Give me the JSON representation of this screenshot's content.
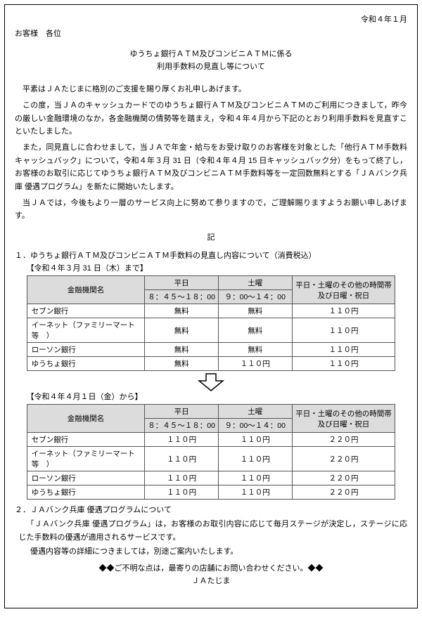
{
  "date": "令和４年１月",
  "addressee": "お客様　各位",
  "title": {
    "line1": "ゆうちょ銀行ＡＴＭ及びコンビニＡＴＭに係る",
    "line2": "利用手数料の見直し等について"
  },
  "paragraphs": {
    "p1": "平素はＪＡたじまに格別のご支援を賜り厚くお礼申しあげます。",
    "p2": "この度，当ＪＡのキャッシュカードでのゆうちょ銀行ＡＴＭ及びコンビニＡＴＭのご利用につきまして，昨今の厳しい金融環境のなか，各金融機関の情勢等を踏まえ，令和４年４月から下記のとおり利用手数料を見直すこといたしました。",
    "p3": "また，同見直しに合わせまして，当ＪＡで年金・給与をお受け取りのお客様を対象とした「他行ＡＴＭ手数料キャッシュバック」について，令和４年３月 31 日（令和４年４月 15 日キャッシュバック分）をもって終了し，お客様のお取引に応じてゆうちょ銀行ＡＴＭ及びコンビニＡＴＭ手数料等を一定回数無料とする「ＪＡバンク兵庫 優遇プログラム」を新たに開始いたします。",
    "p4": "当ＪＡでは，今後もより一層のサービス向上に努めて参りますので，ご理解賜りますようお願い申しあげます。"
  },
  "ki": "記",
  "section1": {
    "heading": "１．ゆうちょ銀行ＡＴＭ及びコンビニＡＴＭ手数料の見直し内容について（消費税込）",
    "beforeLabel": "【令和４年３月 31 日（木）まで】",
    "afterLabel": "【令和４年４月１日（金）から】"
  },
  "table": {
    "header": {
      "institution": "金融機関名",
      "weekday": "平日",
      "weekdayTime": "８：４５～１８：00",
      "saturday": "土曜",
      "saturdayTime": "９：00～１４：00",
      "other": "平日・土曜のその他の時間帯及び日曜・祝日"
    },
    "beforeRows": [
      {
        "inst": "セブン銀行",
        "wd": "無料",
        "sat": "無料",
        "other": "１１０円"
      },
      {
        "inst": "イーネット（ファミリーマート等　）",
        "wd": "無料",
        "sat": "無料",
        "other": "１１０円"
      },
      {
        "inst": "ローソン銀行",
        "wd": "無料",
        "sat": "無料",
        "other": "１１０円"
      },
      {
        "inst": "ゆうちょ銀行",
        "wd": "無料",
        "sat": "１１０円",
        "other": "１１０円"
      }
    ],
    "afterRows": [
      {
        "inst": "セブン銀行",
        "wd": "１１０円",
        "sat": "１１０円",
        "other": "２２０円"
      },
      {
        "inst": "イーネット（ファミリーマート等　）",
        "wd": "１１０円",
        "sat": "１１０円",
        "other": "２２０円"
      },
      {
        "inst": "ローソン銀行",
        "wd": "１１０円",
        "sat": "１１０円",
        "other": "２２０円"
      },
      {
        "inst": "ゆうちょ銀行",
        "wd": "１１０円",
        "sat": "１１０円",
        "other": "２２０円"
      }
    ]
  },
  "arrow": {
    "stroke": "#000000",
    "fill": "#ffffff"
  },
  "section2": {
    "heading": "２．ＪＡバンク兵庫 優遇プログラムについて",
    "body1": "「ＪＡバンク兵庫 優遇プログラム」は，お客様のお取引内容に応じて毎月ステージが決定し，ステージに応じた手数料の優遇が適用されるサービスです。",
    "body2": "優遇内容等の詳細につきましては，別途ご案内いたします。"
  },
  "closing": {
    "line1": "◆◆ご不明な点は，最寄りの店舗にお問い合わせください。◆◆",
    "line2": "ＪＡたじま"
  },
  "colors": {
    "border": "#000000",
    "headerBg": "#dcdcdc",
    "text": "#000000"
  }
}
